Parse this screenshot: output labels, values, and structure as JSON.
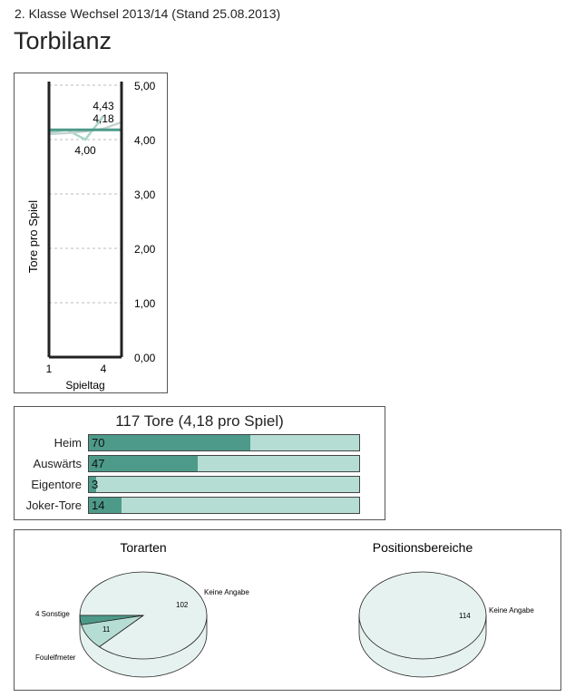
{
  "header": {
    "subtitle": "2. Klasse Wechsel 2013/14 (Stand 25.08.2013)",
    "title": "Torbilanz"
  },
  "chart_data": [
    {
      "type": "line",
      "xlabel": "Spieltag",
      "ylabel": "Tore pro Spiel",
      "ylim": [
        0,
        5
      ],
      "yticks": [
        "0,00",
        "1,00",
        "2,00",
        "3,00",
        "4,00",
        "5,00"
      ],
      "xticks": [
        "1",
        "4"
      ],
      "grid": true,
      "series": [
        {
          "values": [
            4.13,
            4.18,
            4.0,
            4.43
          ],
          "color": "#a8d5c8",
          "x": [
            1,
            2,
            3,
            4
          ]
        },
        {
          "values": [
            4.1,
            4.12,
            4.15,
            4.2,
            4.32
          ],
          "color": "#c5d3d0",
          "x": [
            1,
            2,
            3,
            4,
            5
          ]
        },
        {
          "values": [
            4.18,
            4.18,
            4.18,
            4.18,
            4.18
          ],
          "color": "#4d9a8a",
          "x": [
            1,
            2,
            3,
            4,
            5
          ]
        }
      ],
      "annotations": [
        "4,43",
        "4,18",
        "4,00"
      ]
    },
    {
      "type": "bar",
      "title": "117 Tore (4,18 pro Spiel)",
      "max": 117,
      "categories": [
        "Heim",
        "Auswärts",
        "Eigentore",
        "Joker-Tore"
      ],
      "values": [
        70,
        47,
        3,
        14
      ]
    },
    {
      "type": "pie",
      "title": "Torarten",
      "slices": [
        {
          "label": "Keine Angabe",
          "value": 102,
          "color": "#e6f2ef"
        },
        {
          "label": "Foulelfmeter",
          "value": 11,
          "color": "#b5ddd3"
        },
        {
          "label": "Sonstige",
          "value": 4,
          "color": "#4d9a8a"
        }
      ],
      "labels": {
        "k": "Keine Angabe",
        "kv": "102",
        "f": "Foulelfmeter",
        "fv": "11",
        "s": "4 Sonstige"
      }
    },
    {
      "type": "pie",
      "title": "Positionsbereiche",
      "slices": [
        {
          "label": "Keine Angabe",
          "value": 114,
          "color": "#e6f2ef"
        }
      ],
      "labels": {
        "k": "Keine Angabe",
        "kv": "114"
      }
    }
  ]
}
